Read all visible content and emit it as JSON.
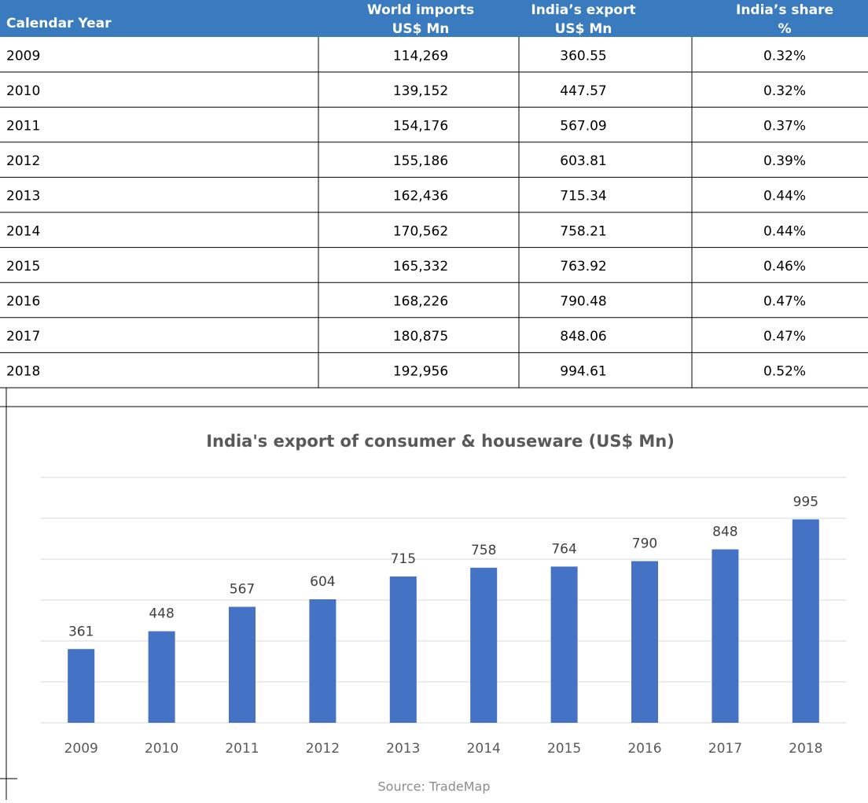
{
  "table": {
    "columns": [
      [
        "Calendar Year"
      ],
      [
        "World imports",
        "US$ Mn"
      ],
      [
        "India’s export",
        "US$ Mn"
      ],
      [
        "India’s share",
        "%"
      ]
    ],
    "rows": [
      [
        "2009",
        "114,269",
        "360.55",
        "0.32%"
      ],
      [
        "2010",
        "139,152",
        "447.57",
        "0.32%"
      ],
      [
        "2011",
        "154,176",
        "567.09",
        "0.37%"
      ],
      [
        "2012",
        "155,186",
        "603.81",
        "0.39%"
      ],
      [
        "2013",
        "162,436",
        "715.34",
        "0.44%"
      ],
      [
        "2014",
        "170,562",
        "758.21",
        "0.44%"
      ],
      [
        "2015",
        "165,332",
        "763.92",
        "0.46%"
      ],
      [
        "2016",
        "168,226",
        "790.48",
        "0.47%"
      ],
      [
        "2017",
        "180,875",
        "848.06",
        "0.47%"
      ],
      [
        "2018",
        "192,956",
        "994.61",
        "0.52%"
      ]
    ]
  },
  "chart_data": {
    "type": "bar",
    "title": "India's export of consumer & houseware (US$ Mn)",
    "categories": [
      "2009",
      "2010",
      "2011",
      "2012",
      "2013",
      "2014",
      "2015",
      "2016",
      "2017",
      "2018"
    ],
    "values": [
      360.55,
      447.57,
      567.09,
      603.81,
      715.34,
      758.21,
      763.92,
      790.48,
      848.06,
      994.61
    ],
    "value_labels": [
      "361",
      "448",
      "567",
      "604",
      "715",
      "758",
      "764",
      "790",
      "848",
      "995"
    ],
    "color": "#4472c4",
    "ylim": [
      0,
      1200
    ],
    "yticks": [
      0,
      200,
      400,
      600,
      800,
      1000,
      1200
    ],
    "grid": true
  },
  "source": "Source: TradeMap"
}
